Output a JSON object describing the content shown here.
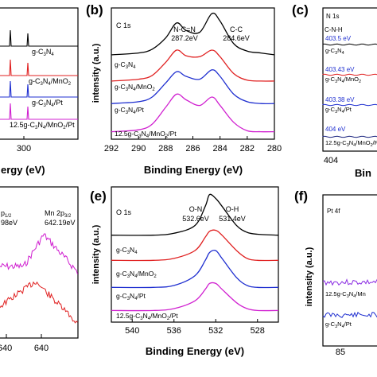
{
  "colors": {
    "black": "#000000",
    "red": "#e02020",
    "blue": "#1f2fd0",
    "magenta": "#d020d0",
    "navy": "#1a237e"
  },
  "panels": {
    "a": {
      "xlabel": "ergy (eV)",
      "ticks": [
        "300"
      ],
      "series_labels": [
        "g-C3N4",
        "g-C3N4/MnO2",
        "g-C3N4/Pt",
        "12.5g-C3N4/MnO2/Pt"
      ]
    },
    "b": {
      "letter": "(b)",
      "title": "C 1s",
      "ylabel": "intensity (a.u.)",
      "xlabel": "Binding Energy (eV)",
      "ticks": [
        "292",
        "290",
        "288",
        "286",
        "284",
        "282",
        "280"
      ],
      "ann1_name": "N-C=N",
      "ann1_value": "287.2eV",
      "ann2_name": "C-C",
      "ann2_value": "284.6eV",
      "series_labels": [
        "g-C3N4",
        "g-C3N4/MnO2",
        "g-C3N4/Pt",
        "12.5g-C3N4/MnO2/Pt"
      ]
    },
    "c": {
      "letter": "(c)",
      "title": "N 1s",
      "peak": "C-N-H",
      "tick": "404",
      "xlabel": "Bin",
      "series_labels": [
        "g-C3N4",
        "g-C3N4/MnO2",
        "g-C3N4/Pt",
        "12.5g-C3N4/MnO2/Pt"
      ],
      "values": [
        "403.5 eV",
        "403.43 eV",
        "403.38 eV",
        "404 eV"
      ]
    },
    "d": {
      "ann1_main": "p",
      "ann1_sub": "1/2",
      "ann1_value": "98eV",
      "ann2_main": "Mn 2p",
      "ann2_sub": "3/2",
      "ann2_value": "642.19eV",
      "ticks": [
        "640",
        "640"
      ]
    },
    "e": {
      "letter": "(e)",
      "title": "O 1s",
      "ylabel": "intensity (a.u.)",
      "xlabel": "Binding Energy (eV)",
      "ticks": [
        "540",
        "536",
        "532",
        "528"
      ],
      "ann1_name": "O-N",
      "ann1_value": "532.6eV",
      "ann2_name": "O-H",
      "ann2_value": "531.4eV",
      "series_labels": [
        "g-C3N4",
        "g-C3N4/MnO2",
        "g-C3N4/Pt",
        "12.5g-C3N4/MnO2/Pt"
      ]
    },
    "f": {
      "letter": "(f)",
      "title": "Pt 4f",
      "ylabel": "intensity (a.u.)",
      "tick": "85",
      "series_labels": [
        "12.5g-C3N4/Mn",
        "g-C3N4/Pt"
      ]
    }
  },
  "chart_data": [
    {
      "type": "line",
      "panel": "b",
      "title": "C 1s",
      "xlabel": "Binding Energy (eV)",
      "ylabel": "intensity (a.u.)",
      "xlim": [
        292,
        280
      ],
      "series": [
        {
          "name": "g-C3N4",
          "color": "#000000",
          "x": [
            292,
            290,
            289,
            288,
            287.2,
            286.5,
            285.5,
            284.6,
            284,
            283,
            282,
            281,
            280
          ],
          "y": [
            1.0,
            1.02,
            1.06,
            1.18,
            1.34,
            1.26,
            1.24,
            1.44,
            1.36,
            1.12,
            1.04,
            1.02,
            1.0
          ]
        },
        {
          "name": "g-C3N4/MnO2",
          "color": "#e02020",
          "x": [
            292,
            290,
            289,
            288,
            287.2,
            286.5,
            285.5,
            284.6,
            284,
            283,
            282,
            281,
            280
          ],
          "y": [
            0.72,
            0.74,
            0.78,
            0.92,
            1.05,
            0.99,
            0.98,
            1.05,
            0.98,
            0.8,
            0.73,
            0.72,
            0.72
          ]
        },
        {
          "name": "g-C3N4/Pt",
          "color": "#1f2fd0",
          "x": [
            292,
            290,
            289,
            288,
            287.2,
            286.5,
            285.5,
            284.6,
            284,
            283,
            282,
            281,
            280
          ],
          "y": [
            0.48,
            0.5,
            0.55,
            0.7,
            0.82,
            0.77,
            0.74,
            0.84,
            0.77,
            0.58,
            0.5,
            0.48,
            0.48
          ]
        },
        {
          "name": "12.5g-C3N4/MnO2/Pt",
          "color": "#d020d0",
          "x": [
            292,
            290,
            289,
            288,
            287.2,
            286.5,
            285.5,
            284.6,
            284,
            283,
            282,
            281,
            280
          ],
          "y": [
            0.18,
            0.2,
            0.26,
            0.44,
            0.58,
            0.52,
            0.46,
            0.55,
            0.46,
            0.28,
            0.19,
            0.18,
            0.18
          ]
        }
      ]
    },
    {
      "type": "line",
      "panel": "e",
      "title": "O 1s",
      "xlabel": "Binding Energy (eV)",
      "ylabel": "intensity (a.u.)",
      "xlim": [
        542,
        526
      ],
      "series": [
        {
          "name": "g-C3N4",
          "color": "#000000",
          "x": [
            542,
            538,
            536,
            534,
            533,
            532.6,
            532,
            531.4,
            530,
            529,
            528,
            526
          ],
          "y": [
            1.0,
            1.0,
            1.02,
            1.1,
            1.3,
            1.42,
            1.38,
            1.3,
            1.1,
            1.03,
            1.01,
            1.0
          ]
        },
        {
          "name": "g-C3N4/MnO2",
          "color": "#e02020",
          "x": [
            542,
            538,
            536,
            534,
            533,
            532.6,
            532,
            531.4,
            530,
            529,
            528,
            526
          ],
          "y": [
            0.74,
            0.74,
            0.76,
            0.84,
            0.98,
            1.04,
            1.05,
            1.0,
            0.84,
            0.76,
            0.74,
            0.74
          ]
        },
        {
          "name": "g-C3N4/Pt",
          "color": "#1f2fd0",
          "x": [
            542,
            538,
            536,
            534,
            533,
            532.6,
            532,
            531.4,
            530,
            529,
            528,
            526
          ],
          "y": [
            0.46,
            0.46,
            0.48,
            0.58,
            0.74,
            0.82,
            0.84,
            0.76,
            0.56,
            0.48,
            0.46,
            0.46
          ]
        },
        {
          "name": "12.5g-C3N4/MnO2/Pt",
          "color": "#d020d0",
          "x": [
            542,
            538,
            536,
            534,
            533,
            532.6,
            532,
            531.4,
            530,
            529,
            528,
            526
          ],
          "y": [
            0.22,
            0.22,
            0.24,
            0.32,
            0.44,
            0.5,
            0.5,
            0.44,
            0.3,
            0.24,
            0.22,
            0.22
          ]
        }
      ]
    }
  ]
}
